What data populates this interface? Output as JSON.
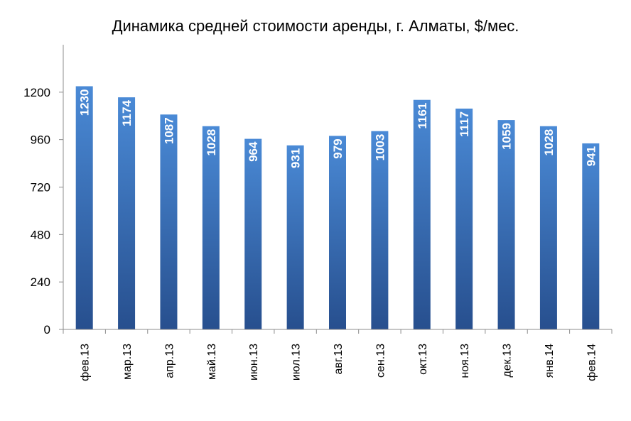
{
  "chart_data": {
    "type": "bar",
    "title": "Динамика средней стоимости аренды, г. Алматы, $/мес.",
    "xlabel": "",
    "ylabel": "",
    "categories": [
      "фев.13",
      "мар.13",
      "апр.13",
      "май.13",
      "июн.13",
      "июл.13",
      "авг.13",
      "сен.13",
      "окт.13",
      "ноя.13",
      "дек.13",
      "янв.14",
      "фев.14"
    ],
    "values": [
      1230,
      1174,
      1087,
      1028,
      964,
      931,
      979,
      1003,
      1161,
      1117,
      1059,
      1028,
      941
    ],
    "data_labels": [
      "1230",
      "1174",
      "1087",
      "1028",
      "964",
      "931",
      "979",
      "1003",
      "1161",
      "1117",
      "1059",
      "1028",
      "941"
    ],
    "yticks": [
      0,
      240,
      480,
      720,
      960,
      1200
    ],
    "ytick_labels": [
      "0",
      "240",
      "480",
      "720",
      "960",
      "1200"
    ],
    "ylim": [
      0,
      1440
    ],
    "grid": false,
    "legend": "none",
    "colors": {
      "bar_top": "#4a8ad6",
      "bar_bottom": "#274f8e",
      "data_label": "#ffffff",
      "axis": "#8c8c8c"
    }
  }
}
